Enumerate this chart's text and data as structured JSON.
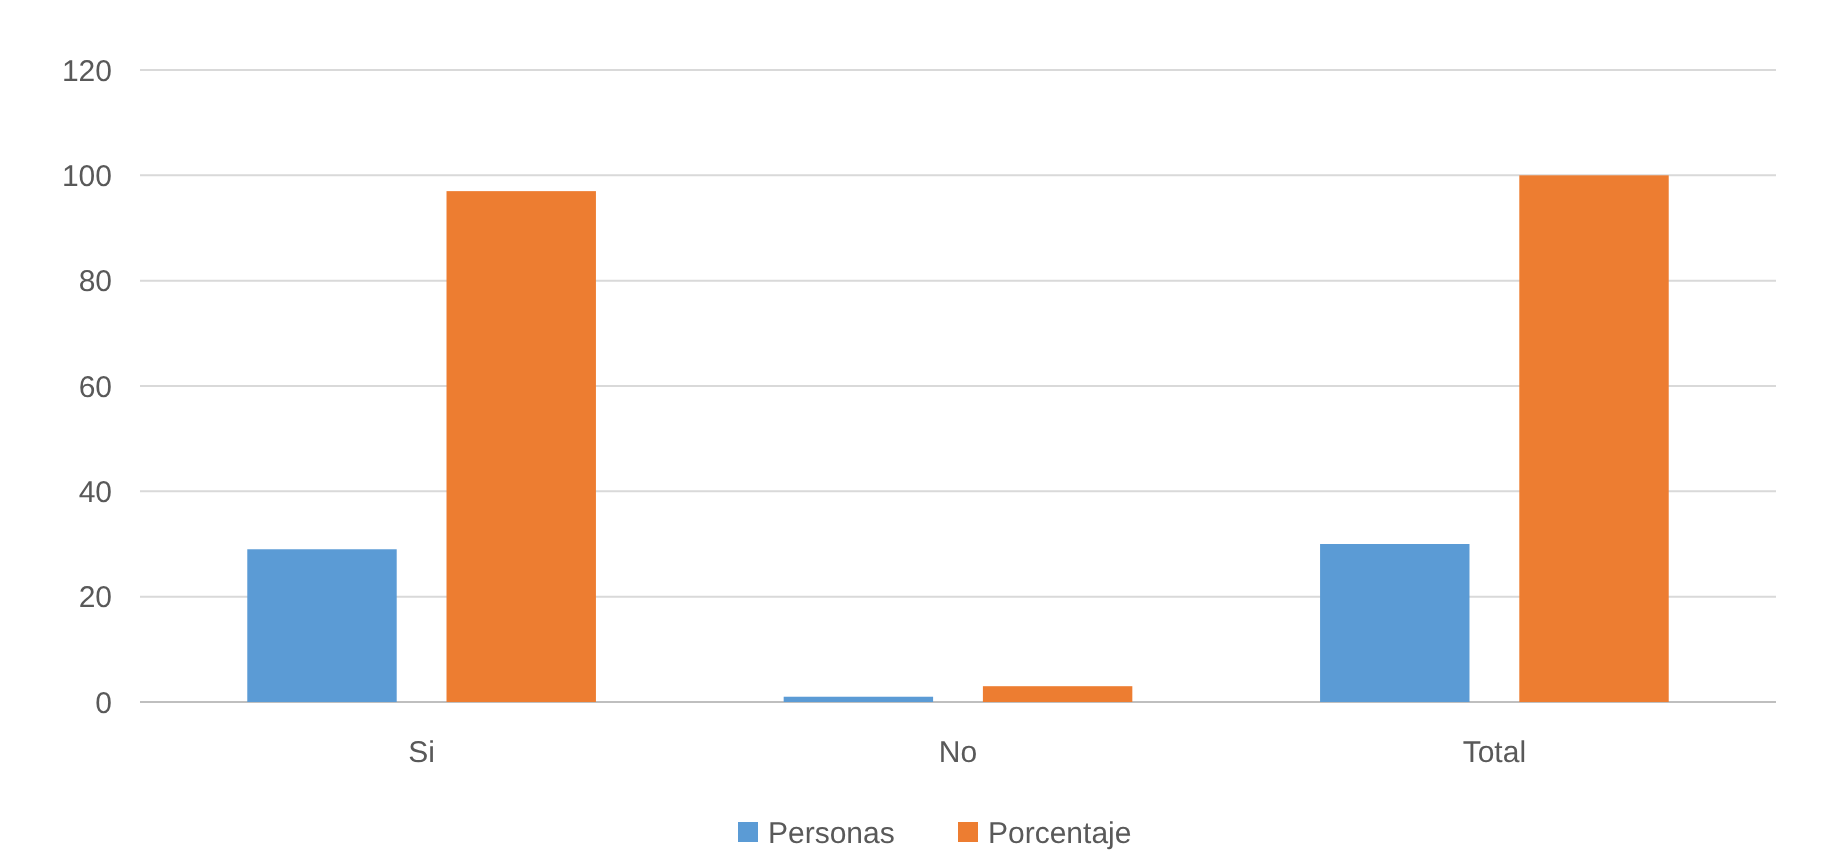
{
  "chart_data": {
    "type": "bar",
    "categories": [
      "Si",
      "No",
      "Total"
    ],
    "series": [
      {
        "name": "Personas",
        "color": "#5b9bd5",
        "values": [
          29,
          1,
          30
        ]
      },
      {
        "name": "Porcentaje",
        "color": "#ed7d31",
        "values": [
          97,
          3,
          100
        ]
      }
    ],
    "ylim": [
      0,
      120
    ],
    "yticks": [
      0,
      20,
      40,
      60,
      80,
      100,
      120
    ],
    "grid": "y",
    "legend": "bottom"
  }
}
